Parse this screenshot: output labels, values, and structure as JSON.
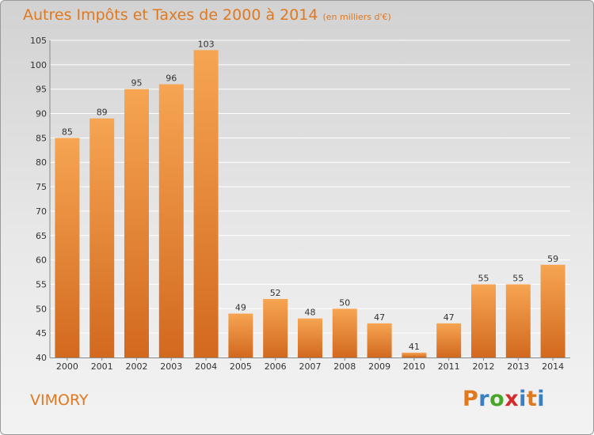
{
  "header": {
    "title": "Autres Impôts et Taxes de 2000 à 2014",
    "subtitle": "(en milliers d'€)"
  },
  "place_name": "VIMORY",
  "logo": {
    "letters": [
      "P",
      "r",
      "o",
      "x",
      "i",
      "t",
      "i"
    ],
    "colors": [
      "#e0781e",
      "#3a7fc1",
      "#4aa62b",
      "#d42a2a",
      "#3a7fc1",
      "#e0781e",
      "#3a7fc1"
    ]
  },
  "colors": {
    "bar_light": "#f6a552",
    "bar_dark": "#d2691e",
    "accent": "#e0781e",
    "grid": "#ffffff"
  },
  "chart_data": {
    "type": "bar",
    "title": "Autres Impôts et Taxes de 2000 à 2014",
    "subtitle": "(en milliers d'€)",
    "categories": [
      "2000",
      "2001",
      "2002",
      "2003",
      "2004",
      "2005",
      "2006",
      "2007",
      "2008",
      "2009",
      "2010",
      "2011",
      "2012",
      "2013",
      "2014"
    ],
    "values": [
      85,
      89,
      95,
      96,
      103,
      49,
      52,
      48,
      50,
      47,
      41,
      47,
      55,
      55,
      59
    ],
    "data_labels": [
      "85",
      "89",
      "95",
      "96",
      "103",
      "49",
      "52",
      "48",
      "50",
      "47",
      "41",
      "47",
      "55",
      "55",
      "59"
    ],
    "yticks": [
      40,
      45,
      50,
      55,
      60,
      65,
      70,
      75,
      80,
      85,
      90,
      95,
      100,
      105
    ],
    "ylim": [
      40,
      105
    ],
    "grid": true
  }
}
